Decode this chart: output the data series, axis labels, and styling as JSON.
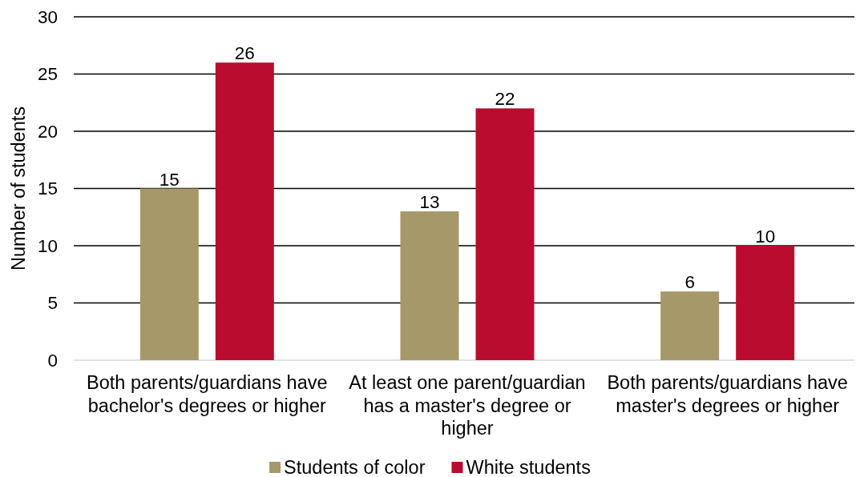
{
  "chart_data": {
    "type": "bar",
    "ylabel": "Number of students",
    "categories": [
      "Both parents/guardians have bachelor's degrees or higher",
      "At least one parent/guardian has a master's degree or higher",
      "Both parents/guardians have master's degrees or higher"
    ],
    "series": [
      {
        "name": "Students of color",
        "color": "#a69868",
        "values": [
          15,
          13,
          6
        ]
      },
      {
        "name": "White students",
        "color": "#ba0c2f",
        "values": [
          26,
          22,
          10
        ]
      }
    ],
    "ylim": [
      0,
      30
    ],
    "yticks": [
      0,
      5,
      10,
      15,
      20,
      25,
      30
    ],
    "grid": "y",
    "data_labels": true,
    "legend": "bottom"
  }
}
